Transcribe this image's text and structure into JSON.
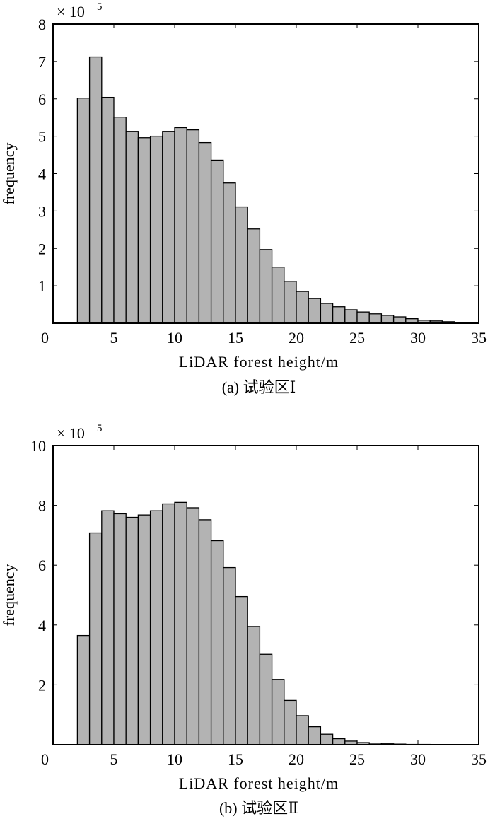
{
  "chart_data": [
    {
      "type": "bar",
      "title": "",
      "caption": "(a) 试验区Ⅰ",
      "xlabel": "LiDAR forest height/m",
      "ylabel": "frequency",
      "y_multiplier": "× 10",
      "y_multiplier_exp": "5",
      "xlim": [
        0,
        35
      ],
      "ylim": [
        0,
        8
      ],
      "xticks": [
        0,
        5,
        10,
        15,
        20,
        25,
        30,
        35
      ],
      "yticks": [
        0,
        1,
        2,
        3,
        4,
        5,
        6,
        7,
        8
      ],
      "bin_start": 2,
      "bin_width": 1,
      "values": [
        6.02,
        7.12,
        6.04,
        5.51,
        5.13,
        4.96,
        5.0,
        5.13,
        5.23,
        5.17,
        4.83,
        4.36,
        3.75,
        3.11,
        2.52,
        1.97,
        1.5,
        1.12,
        0.85,
        0.66,
        0.53,
        0.44,
        0.36,
        0.3,
        0.25,
        0.21,
        0.17,
        0.12,
        0.08,
        0.06,
        0.04
      ],
      "bar_color": "#b3b3b3",
      "grid": false
    },
    {
      "type": "bar",
      "title": "",
      "caption": "(b) 试验区Ⅱ",
      "xlabel": "LiDAR forest height/m",
      "ylabel": "frequency",
      "y_multiplier": "× 10",
      "y_multiplier_exp": "5",
      "xlim": [
        0,
        35
      ],
      "ylim": [
        0,
        10
      ],
      "xticks": [
        0,
        5,
        10,
        15,
        20,
        25,
        30,
        35
      ],
      "yticks": [
        0,
        2,
        4,
        6,
        8,
        10
      ],
      "bin_start": 2,
      "bin_width": 1,
      "values": [
        3.65,
        7.08,
        7.82,
        7.72,
        7.6,
        7.68,
        7.82,
        8.05,
        8.1,
        7.92,
        7.52,
        6.82,
        5.92,
        4.95,
        3.95,
        3.02,
        2.18,
        1.48,
        0.97,
        0.6,
        0.35,
        0.2,
        0.12,
        0.07,
        0.05,
        0.03,
        0.02,
        0.01,
        0.01,
        0.005,
        0.003
      ],
      "bar_color": "#b3b3b3",
      "grid": false
    }
  ]
}
